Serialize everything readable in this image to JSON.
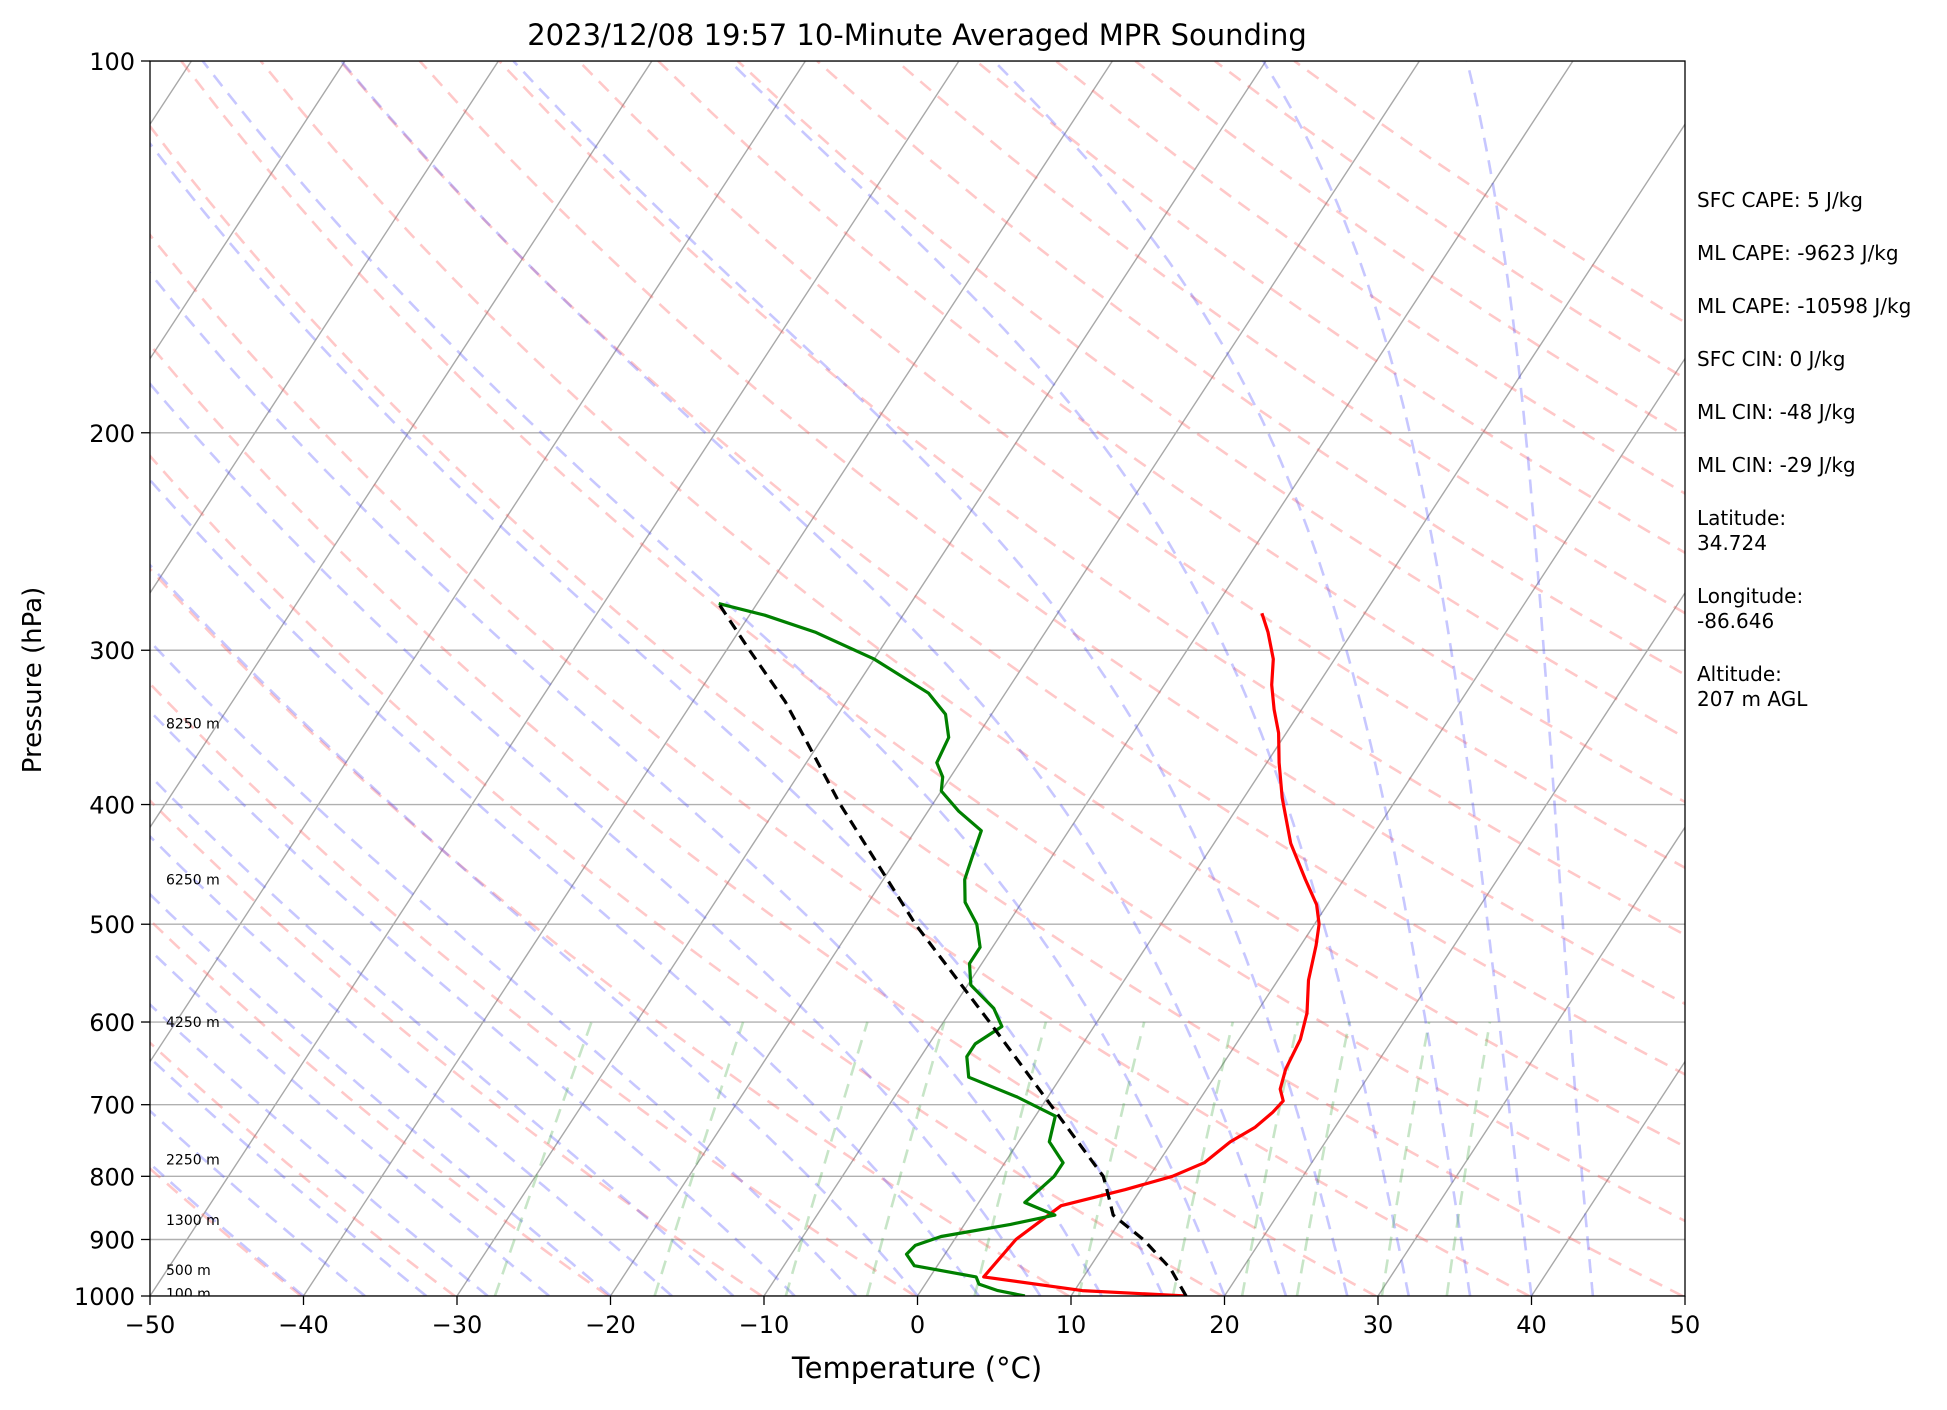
{
  "chart_data": {
    "type": "line",
    "title": "2023/12/08 19:57 10-Minute Averaged MPR Sounding",
    "xlabel": "Temperature (°C)",
    "ylabel": "Pressure (hPa)",
    "xlim": [
      -50,
      50
    ],
    "ylim": [
      1000,
      100
    ],
    "y_scale": "log",
    "x_ticks": [
      "−50",
      "−40",
      "−30",
      "−20",
      "−10",
      "0",
      "10",
      "20",
      "30",
      "40",
      "50"
    ],
    "y_ticks": [
      "100",
      "200",
      "300",
      "400",
      "500",
      "600",
      "700",
      "800",
      "900",
      "1000"
    ],
    "isobar_grid": true,
    "height_labels": [
      {
        "label": "8250 m",
        "p": 344
      },
      {
        "label": "6250 m",
        "p": 460
      },
      {
        "label": "4250 m",
        "p": 600
      },
      {
        "label": "2250 m",
        "p": 775
      },
      {
        "label": "1300 m",
        "p": 868
      },
      {
        "label": "500 m",
        "p": 953
      },
      {
        "label": "100 m",
        "p": 995
      }
    ],
    "series": [
      {
        "color": "#ff0000",
        "points": [
          [
            1000,
            17.5
          ],
          [
            990,
            10.5
          ],
          [
            965,
            3.5
          ],
          [
            900,
            4.0
          ],
          [
            845,
            5.5
          ],
          [
            820,
            9.0
          ],
          [
            800,
            11.5
          ],
          [
            780,
            13.0
          ],
          [
            750,
            13.8
          ],
          [
            730,
            14.8
          ],
          [
            710,
            15.3
          ],
          [
            695,
            15.5
          ],
          [
            680,
            14.8
          ],
          [
            655,
            14.3
          ],
          [
            620,
            14.0
          ],
          [
            590,
            13.3
          ],
          [
            555,
            12.0
          ],
          [
            520,
            11.0
          ],
          [
            500,
            10.3
          ],
          [
            482,
            9.3
          ],
          [
            460,
            7.5
          ],
          [
            430,
            5.0
          ],
          [
            395,
            2.5
          ],
          [
            370,
            0.8
          ],
          [
            350,
            -0.5
          ],
          [
            335,
            -1.8
          ],
          [
            320,
            -3.0
          ],
          [
            305,
            -4.0
          ],
          [
            290,
            -5.5
          ],
          [
            280,
            -6.7
          ]
        ]
      },
      {
        "color": "#008000",
        "points": [
          [
            1000,
            7.0
          ],
          [
            990,
            5.0
          ],
          [
            978,
            3.5
          ],
          [
            965,
            3.0
          ],
          [
            945,
            -1.5
          ],
          [
            925,
            -2.5
          ],
          [
            910,
            -2.3
          ],
          [
            895,
            -1.0
          ],
          [
            875,
            3.0
          ],
          [
            860,
            5.5
          ],
          [
            840,
            3.0
          ],
          [
            815,
            3.5
          ],
          [
            800,
            3.8
          ],
          [
            780,
            3.8
          ],
          [
            750,
            2.0
          ],
          [
            715,
            1.3
          ],
          [
            690,
            -2.0
          ],
          [
            665,
            -6.0
          ],
          [
            640,
            -7.0
          ],
          [
            625,
            -7.0
          ],
          [
            605,
            -6.0
          ],
          [
            585,
            -7.3
          ],
          [
            560,
            -9.8
          ],
          [
            538,
            -10.8
          ],
          [
            522,
            -10.8
          ],
          [
            500,
            -12.0
          ],
          [
            480,
            -13.7
          ],
          [
            460,
            -14.7
          ],
          [
            440,
            -15.2
          ],
          [
            420,
            -15.7
          ],
          [
            405,
            -18.0
          ],
          [
            390,
            -20.0
          ],
          [
            380,
            -20.5
          ],
          [
            370,
            -21.5
          ],
          [
            353,
            -21.8
          ],
          [
            338,
            -23.0
          ],
          [
            325,
            -25.0
          ],
          [
            305,
            -30.0
          ],
          [
            290,
            -35.0
          ],
          [
            281,
            -39.0
          ],
          [
            275,
            -42.5
          ]
        ]
      },
      {
        "color": "#000000",
        "style": "dashed",
        "points": [
          [
            1000,
            17.5
          ],
          [
            950,
            15.3
          ],
          [
            900,
            12.3
          ],
          [
            860,
            9.3
          ],
          [
            820,
            7.8
          ],
          [
            800,
            7.0
          ],
          [
            700,
            0.5
          ],
          [
            600,
            -7.0
          ],
          [
            500,
            -16.0
          ],
          [
            400,
            -26.0
          ],
          [
            330,
            -34.0
          ],
          [
            300,
            -38.5
          ],
          [
            275,
            -42.5
          ]
        ]
      }
    ]
  },
  "info_panel": [
    "SFC CAPE: 5 J/kg",
    "ML CAPE: -9623 J/kg",
    "ML CAPE: -10598 J/kg",
    "SFC CIN: 0 J/kg",
    "ML CIN: -48 J/kg",
    "ML CIN: -29 J/kg",
    "Latitude:\n34.724",
    "Longitude:\n-86.646",
    "Altitude:\n207 m AGL"
  ]
}
